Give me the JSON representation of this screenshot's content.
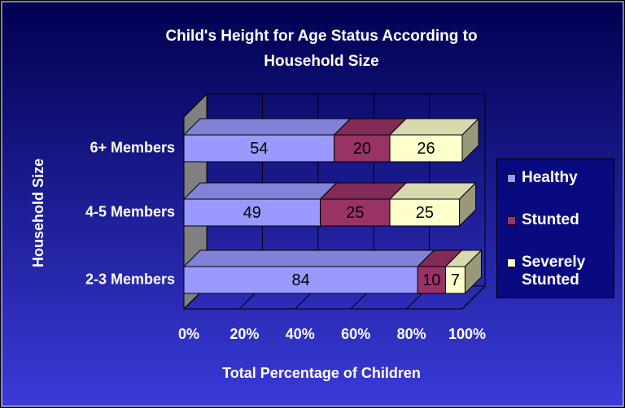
{
  "chart_data": {
    "type": "stacked-bar-horizontal-3d",
    "title": "Child's Height for Age Status According to Household Size",
    "x_label": "Total Percentage of Children",
    "y_label": "Household Size",
    "categories": [
      "6+ Members",
      "4-5 Members",
      "2-3 Members"
    ],
    "series": [
      {
        "name": "Healthy",
        "color": "#9999ff",
        "values": [
          54,
          49,
          84
        ]
      },
      {
        "name": "Stunted",
        "color": "#993366",
        "values": [
          20,
          25,
          10
        ]
      },
      {
        "name": "Severely Stunted",
        "color": "#ffffcc",
        "values": [
          26,
          25,
          7
        ]
      }
    ],
    "xlim": [
      0,
      100
    ],
    "xticks": [
      {
        "value": 0,
        "label": "0%"
      },
      {
        "value": 20,
        "label": "20%"
      },
      {
        "value": 40,
        "label": "40%"
      },
      {
        "value": 60,
        "label": "60%"
      },
      {
        "value": 80,
        "label": "80%"
      },
      {
        "value": 100,
        "label": "100%"
      }
    ],
    "grid": true,
    "legend": "right"
  }
}
